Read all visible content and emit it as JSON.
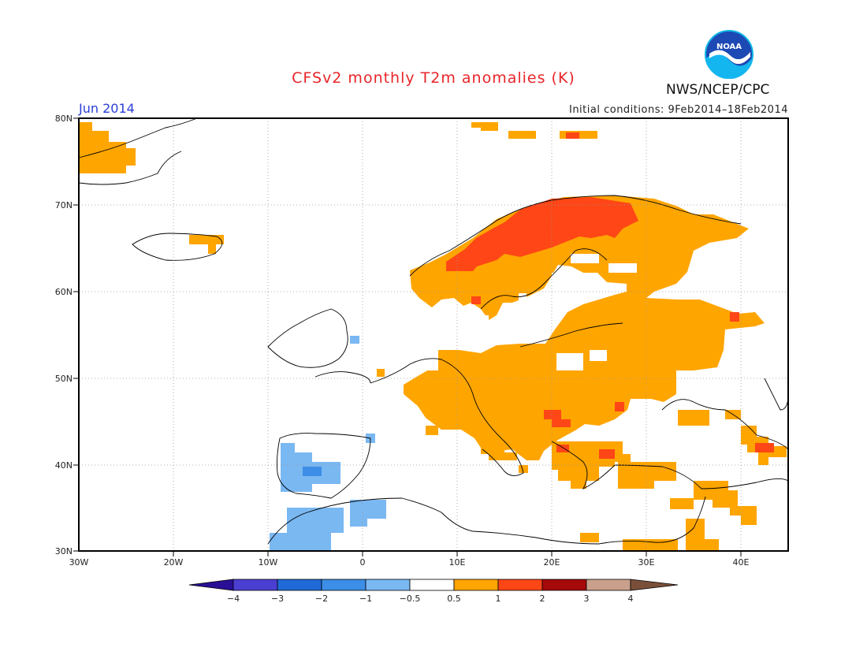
{
  "header": {
    "title": "CFSv2 monthly T2m anomalies (K)",
    "month": "Jun 2014",
    "initial_conditions": "Initial conditions: 9Feb2014–18Feb2014",
    "agency": "NWS/NCEP/CPC",
    "logo_text": "NOAA"
  },
  "map": {
    "lon_ticks": [
      "30W",
      "20W",
      "10W",
      "0",
      "10E",
      "20E",
      "30E",
      "40E"
    ],
    "lat_ticks": [
      "30N",
      "40N",
      "50N",
      "60N",
      "70N",
      "80N"
    ],
    "lon_range": [
      -30,
      45
    ],
    "lat_range": [
      30,
      80
    ],
    "grid": true
  },
  "legend": {
    "labels": [
      "−4",
      "−3",
      "−2",
      "−1",
      "−0.5",
      "0.5",
      "1",
      "2",
      "3",
      "4"
    ],
    "colors": [
      "#2a0f96",
      "#4b3fd2",
      "#1f6ad6",
      "#3c8ee6",
      "#7ab8f2",
      "#ffffff",
      "#ffa500",
      "#ff4616",
      "#a50a0a",
      "#c9a08c",
      "#7a4f3a"
    ]
  },
  "colors": {
    "orange": "#ffa500",
    "red": "#ff4616",
    "light_blue": "#7ab8f2",
    "blue": "#3c8ee6",
    "title": "#e8252a",
    "month": "#2a3ed8"
  }
}
